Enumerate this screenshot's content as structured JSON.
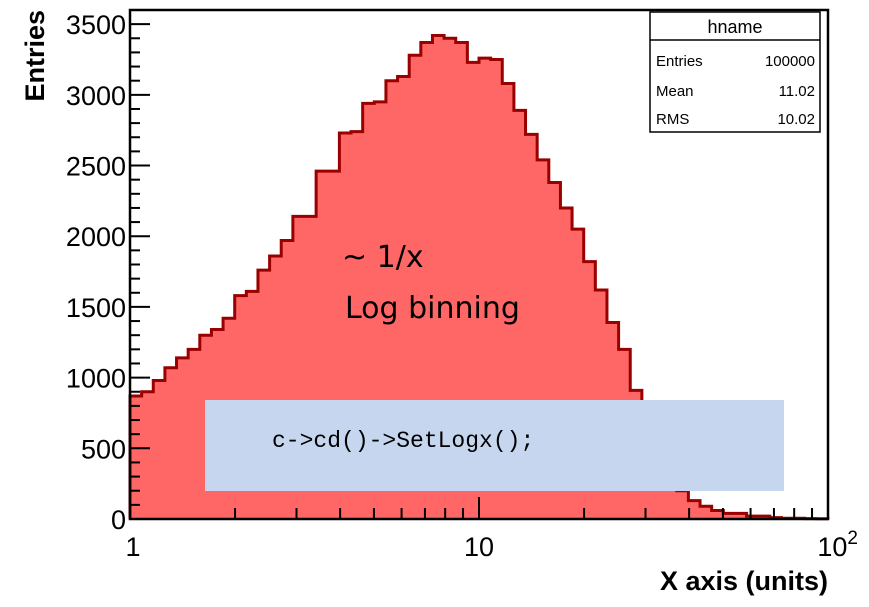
{
  "chart_data": {
    "type": "bar",
    "xlabel": "X axis (units)",
    "ylabel": "Entries",
    "x_scale": "log",
    "xlim": [
      1,
      100
    ],
    "ylim": [
      0,
      3600
    ],
    "x_ticks": [
      "1",
      "10"
    ],
    "x_tick_max_base": "10",
    "x_tick_max_exp": "2",
    "y_ticks": [
      0,
      500,
      1000,
      1500,
      2000,
      2500,
      3000,
      3500
    ],
    "fill_color": "#ff6666",
    "line_color": "#990000",
    "bin_values": [
      870,
      900,
      980,
      1070,
      1140,
      1200,
      1300,
      1340,
      1420,
      1580,
      1610,
      1760,
      1860,
      1970,
      2140,
      2140,
      2460,
      2460,
      2730,
      2740,
      2940,
      2950,
      3100,
      3130,
      3280,
      3370,
      3420,
      3400,
      3370,
      3230,
      3260,
      3250,
      3080,
      2890,
      2720,
      2540,
      2380,
      2200,
      2050,
      1820,
      1620,
      1390,
      1200,
      910,
      680,
      470,
      320,
      200,
      130,
      90,
      60,
      40,
      40,
      20,
      20,
      10,
      5,
      5,
      3,
      2
    ],
    "stats": {
      "title": "hname",
      "rows": [
        {
          "label": "Entries",
          "value": "100000"
        },
        {
          "label": "Mean",
          "value": "11.02"
        },
        {
          "label": "RMS",
          "value": "10.02"
        }
      ]
    },
    "annotations": [
      "~ 1/x",
      "Log binning"
    ],
    "code_box": {
      "text": "c->cd()->SetLogx();",
      "color": "#c5d6ee"
    }
  }
}
